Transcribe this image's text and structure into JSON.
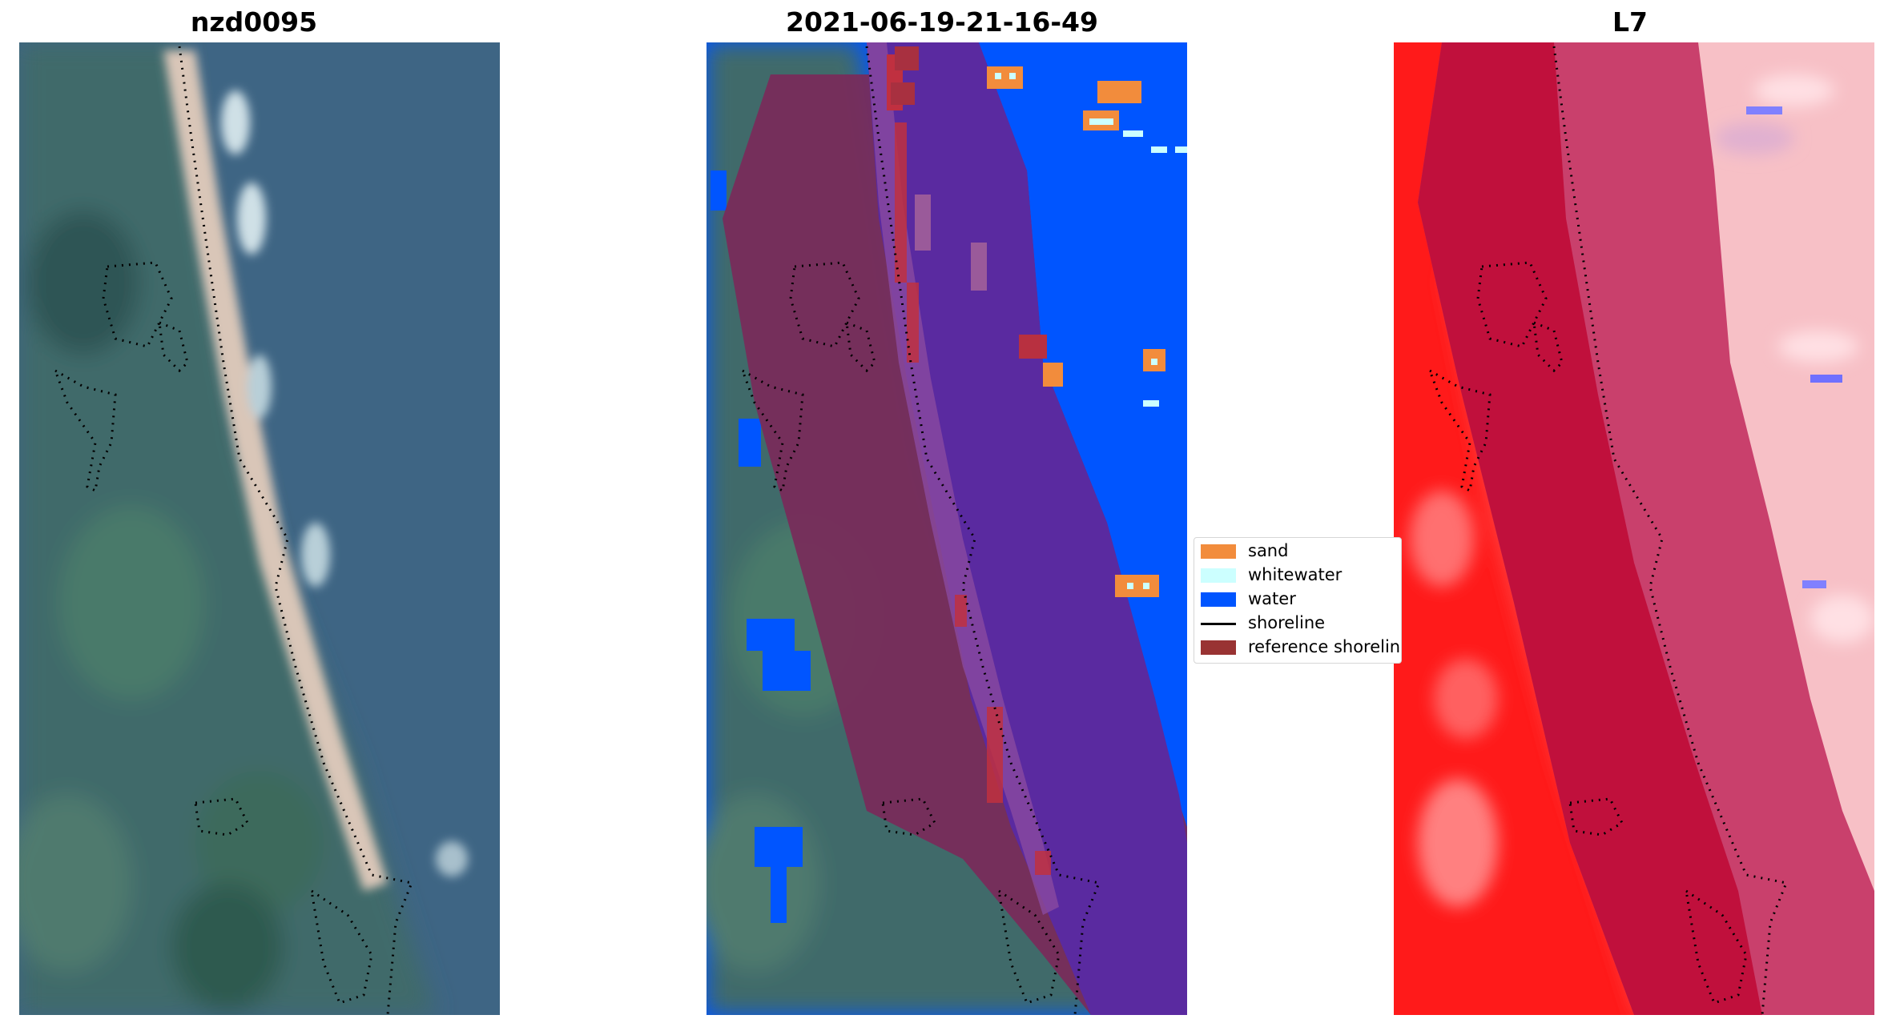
{
  "titles": {
    "left": "nzd0095",
    "middle": "2021-06-19-21-16-49",
    "right": "L7"
  },
  "legend": {
    "items": [
      {
        "label": "sand",
        "color": "#f28c3c"
      },
      {
        "label": "whitewater",
        "color": "#ccffff"
      },
      {
        "label": "water",
        "color": "#0055ff"
      },
      {
        "label": "shoreline",
        "color": "#000000"
      },
      {
        "label": "reference shoreline",
        "color": "#993333"
      }
    ]
  },
  "colors": {
    "land_green": "#3f6a6a",
    "sea_blue": "#3e6584",
    "beach_sand": "#d9c6b8",
    "classified_water": "#0055ff",
    "overlay_land": "#7a2a5a",
    "overlay_sea": "#5a2aa0",
    "index_red": "#ff1a1a",
    "index_pink": "#f7c0c6",
    "index_crimson": "#c0103c",
    "index_mauve": "#c9406c"
  }
}
